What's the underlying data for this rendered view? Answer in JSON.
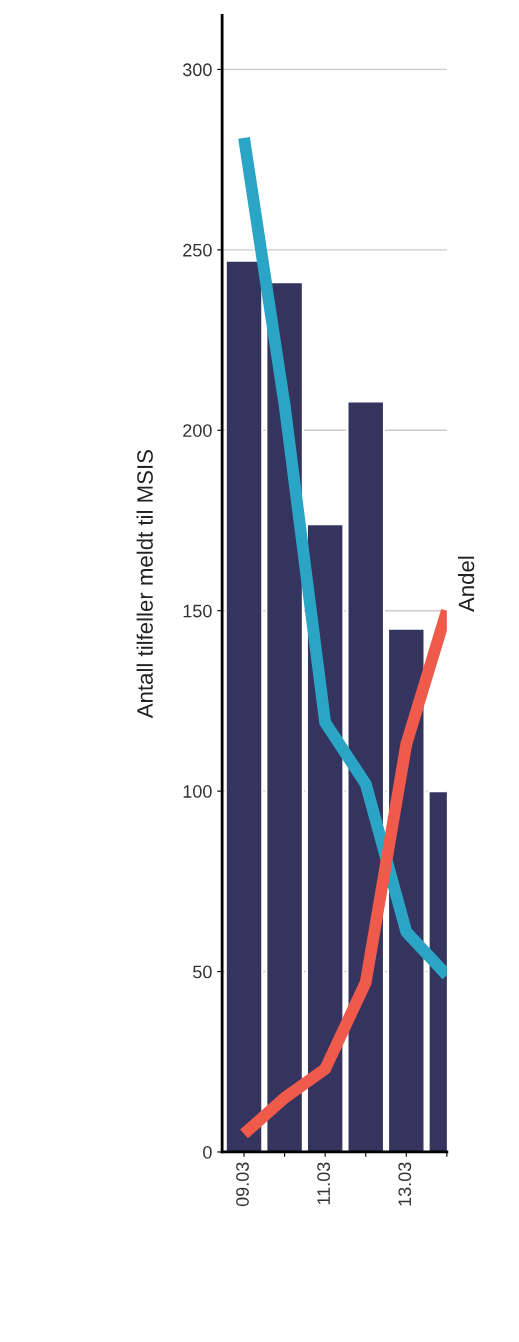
{
  "chart_data": {
    "type": "bar",
    "ylabel": "Antall tilfeller meldt til MSIS",
    "y2label": "Andel",
    "categories": [
      "09.03",
      null,
      "11.03",
      null,
      "13.03",
      null
    ],
    "series": [
      {
        "color": "#34345f",
        "values": [
          247,
          241,
          174,
          208,
          145,
          100
        ]
      },
      {
        "type": "line",
        "color": "#2ba5c6",
        "values": [
          281,
          207,
          119,
          102,
          61,
          49
        ]
      },
      {
        "type": "line",
        "color": "#f05a4b",
        "values": [
          5,
          15,
          23,
          47,
          113,
          150
        ]
      }
    ],
    "ylim": [
      0,
      315
    ],
    "yticks": [
      0,
      50,
      100,
      150,
      200,
      250,
      300
    ],
    "grid": "y",
    "legend": false
  }
}
